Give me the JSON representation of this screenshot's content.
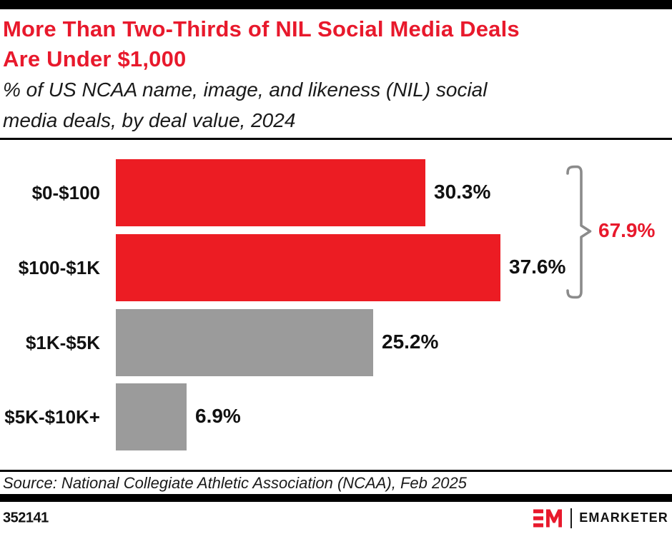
{
  "header": {
    "title_lines": [
      "More Than Two-Thirds of NIL Social Media Deals",
      "Are Under $1,000"
    ],
    "subtitle_lines": [
      "% of US NCAA name, image, and likeness (NIL) social",
      "media deals, by deal value, 2024"
    ]
  },
  "chart_data": {
    "type": "bar",
    "orientation": "horizontal",
    "title": "More Than Two-Thirds of NIL Social Media Deals Are Under $1,000",
    "subtitle": "% of US NCAA name, image, and likeness (NIL) social media deals, by deal value, 2024",
    "categories": [
      "$0-$100",
      "$100-$1K",
      "$1K-$5K",
      "$5K-$10K+"
    ],
    "values": [
      30.3,
      37.6,
      25.2,
      6.9
    ],
    "value_labels": [
      "30.3%",
      "37.6%",
      "25.2%",
      "6.9%"
    ],
    "bar_colors": [
      "#ec1c23",
      "#ec1c23",
      "#9b9b9b",
      "#9b9b9b"
    ],
    "xlim": [
      0,
      40
    ],
    "grid": false,
    "legend": false,
    "annotation": {
      "label": "67.9%",
      "spans_categories": [
        "$0-$100",
        "$100-$1K"
      ],
      "color": "#e8192c"
    }
  },
  "source": {
    "text": "Source: National Collegiate Athletic Association (NCAA), Feb 2025"
  },
  "footer": {
    "chart_id": "352141",
    "brand_wordmark": "EMARKETER"
  },
  "colors": {
    "title_red": "#e8192c",
    "bar_red": "#ec1c23",
    "bar_gray": "#9b9b9b",
    "bracket_gray": "#8b8b8b",
    "black": "#000000",
    "text": "#111111"
  }
}
